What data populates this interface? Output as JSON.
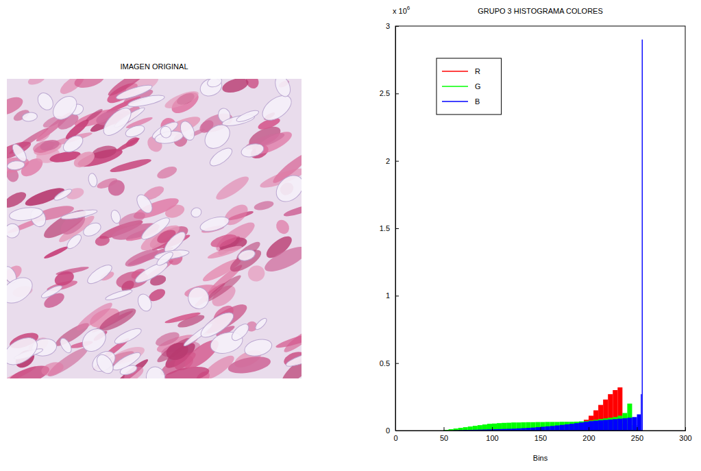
{
  "image_panel": {
    "title": "IMAGEN ORIGINAL"
  },
  "chart_data": {
    "type": "histogram",
    "title": "GRUPO 3 HISTOGRAMA COLORES",
    "x_label": "Bins",
    "annotations": [
      {
        "text": "x 10",
        "superscript": "6"
      }
    ],
    "bins": [
      0,
      5,
      10,
      15,
      20,
      25,
      30,
      35,
      40,
      45,
      50,
      55,
      60,
      65,
      70,
      75,
      80,
      85,
      90,
      95,
      100,
      105,
      110,
      115,
      120,
      125,
      130,
      135,
      140,
      145,
      150,
      155,
      160,
      165,
      170,
      175,
      180,
      185,
      190,
      195,
      200,
      205,
      210,
      215,
      220,
      225,
      230,
      235,
      240,
      245,
      250,
      254,
      255,
      256
    ],
    "series": [
      {
        "name": "R",
        "color": "#ff0000",
        "values": [
          0,
          0,
          0,
          0,
          0,
          0,
          0,
          0,
          0,
          0,
          0,
          0,
          0,
          0,
          0,
          0,
          0,
          0,
          0,
          0,
          0,
          0,
          0,
          0,
          0,
          0,
          0,
          0,
          0,
          0,
          0,
          0,
          0,
          0,
          0,
          0,
          0.01,
          0.03,
          0.06,
          0.08,
          0.11,
          0.15,
          0.19,
          0.23,
          0.27,
          0.3,
          0.32,
          0.05,
          0,
          0,
          0,
          0,
          0
        ]
      },
      {
        "name": "G",
        "color": "#00ff00",
        "values": [
          0,
          0,
          0,
          0,
          0,
          0,
          0,
          0,
          0,
          0,
          0.005,
          0.01,
          0.015,
          0.02,
          0.025,
          0.03,
          0.035,
          0.04,
          0.045,
          0.05,
          0.052,
          0.055,
          0.057,
          0.058,
          0.06,
          0.06,
          0.061,
          0.062,
          0.062,
          0.063,
          0.063,
          0.064,
          0.064,
          0.064,
          0.065,
          0.065,
          0.065,
          0.066,
          0.068,
          0.07,
          0.075,
          0.08,
          0.085,
          0.09,
          0.095,
          0.1,
          0.11,
          0.13,
          0.2,
          0.04,
          0,
          0,
          0
        ]
      },
      {
        "name": "B",
        "color": "#0000ff",
        "values": [
          0,
          0,
          0,
          0,
          0,
          0,
          0,
          0,
          0,
          0,
          0,
          0,
          0.002,
          0.003,
          0.004,
          0.005,
          0.006,
          0.007,
          0.008,
          0.009,
          0.01,
          0.011,
          0.012,
          0.013,
          0.014,
          0.016,
          0.018,
          0.02,
          0.022,
          0.025,
          0.028,
          0.031,
          0.034,
          0.038,
          0.042,
          0.046,
          0.05,
          0.055,
          0.06,
          0.065,
          0.07,
          0.073,
          0.076,
          0.079,
          0.082,
          0.085,
          0.088,
          0.091,
          0.095,
          0.1,
          0.12,
          0.27,
          2.9
        ]
      }
    ],
    "xlim": [
      0,
      300
    ],
    "xticks": [
      0,
      50,
      100,
      150,
      200,
      250,
      300
    ],
    "ylim": [
      0,
      3
    ],
    "yticks": [
      0,
      0.5,
      1,
      1.5,
      2,
      2.5,
      3
    ],
    "grid": false,
    "legend": "northwest"
  }
}
